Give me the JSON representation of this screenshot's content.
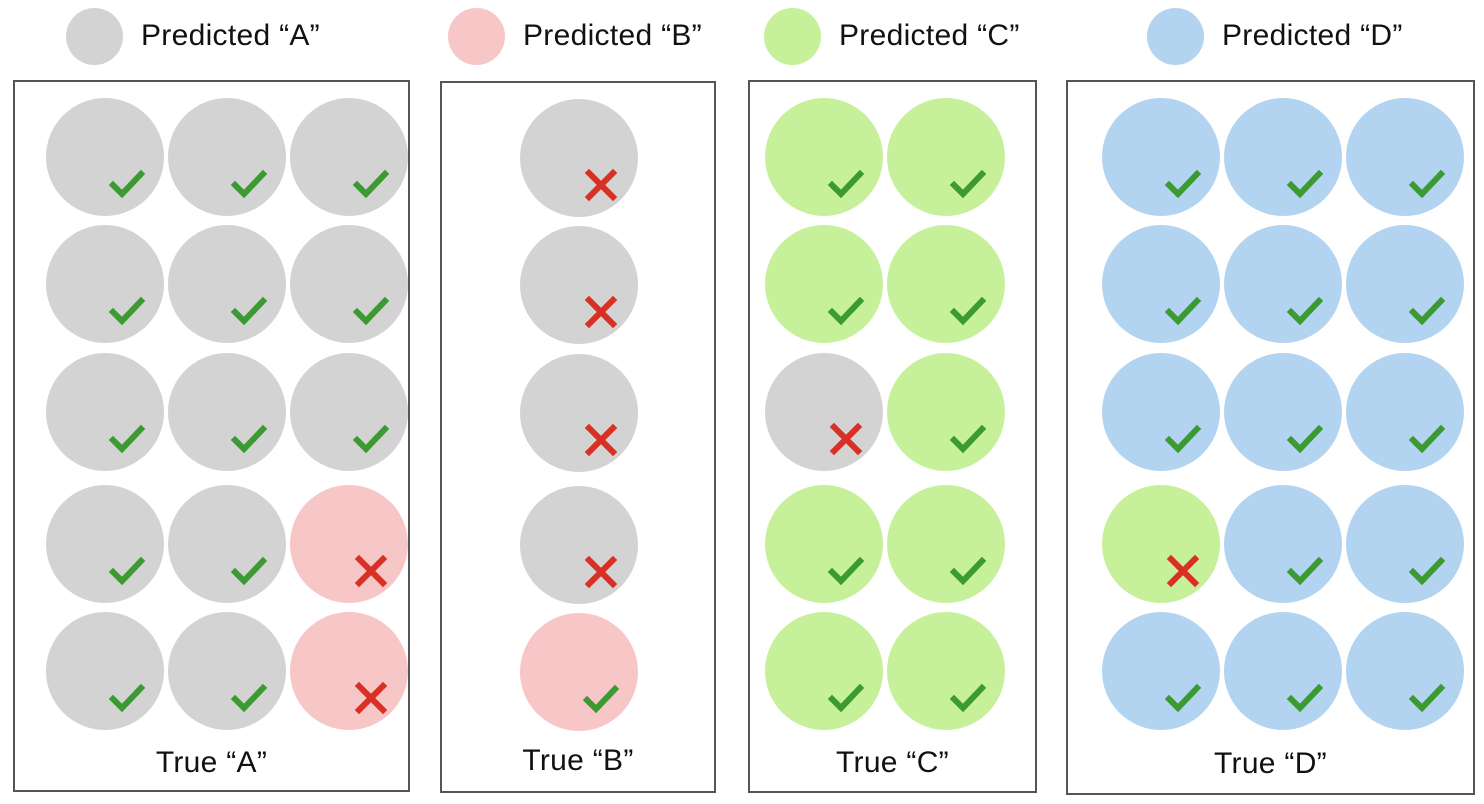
{
  "colors": {
    "A": "#d3d3d3",
    "B": "#f7c6c7",
    "C": "#c7f09a",
    "D": "#b3d4f1",
    "correct": "#3c9a32",
    "wrong": "#d93025"
  },
  "legend": [
    {
      "key": "A",
      "label": "Predicted “A”"
    },
    {
      "key": "B",
      "label": "Predicted “B”"
    },
    {
      "key": "C",
      "label": "Predicted “C”"
    },
    {
      "key": "D",
      "label": "Predicted “D”"
    }
  ],
  "panels": [
    {
      "true_class": "A",
      "label": "True “A”",
      "rows": [
        [
          {
            "pred": "A",
            "icon": "check-icon"
          },
          {
            "pred": "A",
            "icon": "check-icon"
          },
          {
            "pred": "A",
            "icon": "check-icon"
          }
        ],
        [
          {
            "pred": "A",
            "icon": "check-icon"
          },
          {
            "pred": "A",
            "icon": "check-icon"
          },
          {
            "pred": "A",
            "icon": "check-icon"
          }
        ],
        [
          {
            "pred": "A",
            "icon": "check-icon"
          },
          {
            "pred": "A",
            "icon": "check-icon"
          },
          {
            "pred": "A",
            "icon": "check-icon"
          }
        ],
        [
          {
            "pred": "A",
            "icon": "check-icon"
          },
          {
            "pred": "A",
            "icon": "check-icon"
          },
          {
            "pred": "B",
            "icon": "cross-icon"
          }
        ],
        [
          {
            "pred": "A",
            "icon": "check-icon"
          },
          {
            "pred": "A",
            "icon": "check-icon"
          },
          {
            "pred": "B",
            "icon": "cross-icon"
          }
        ]
      ]
    },
    {
      "true_class": "B",
      "label": "True “B”",
      "rows": [
        [
          {
            "pred": "A",
            "icon": "cross-icon"
          }
        ],
        [
          {
            "pred": "A",
            "icon": "cross-icon"
          }
        ],
        [
          {
            "pred": "A",
            "icon": "cross-icon"
          }
        ],
        [
          {
            "pred": "A",
            "icon": "cross-icon"
          }
        ],
        [
          {
            "pred": "B",
            "icon": "check-icon"
          }
        ]
      ]
    },
    {
      "true_class": "C",
      "label": "True “C”",
      "rows": [
        [
          {
            "pred": "C",
            "icon": "check-icon"
          },
          {
            "pred": "C",
            "icon": "check-icon"
          }
        ],
        [
          {
            "pred": "C",
            "icon": "check-icon"
          },
          {
            "pred": "C",
            "icon": "check-icon"
          }
        ],
        [
          {
            "pred": "A",
            "icon": "cross-icon"
          },
          {
            "pred": "C",
            "icon": "check-icon"
          }
        ],
        [
          {
            "pred": "C",
            "icon": "check-icon"
          },
          {
            "pred": "C",
            "icon": "check-icon"
          }
        ],
        [
          {
            "pred": "C",
            "icon": "check-icon"
          },
          {
            "pred": "C",
            "icon": "check-icon"
          }
        ]
      ]
    },
    {
      "true_class": "D",
      "label": "True “D”",
      "rows": [
        [
          {
            "pred": "D",
            "icon": "check-icon"
          },
          {
            "pred": "D",
            "icon": "check-icon"
          },
          {
            "pred": "D",
            "icon": "check-icon"
          }
        ],
        [
          {
            "pred": "D",
            "icon": "check-icon"
          },
          {
            "pred": "D",
            "icon": "check-icon"
          },
          {
            "pred": "D",
            "icon": "check-icon"
          }
        ],
        [
          {
            "pred": "D",
            "icon": "check-icon"
          },
          {
            "pred": "D",
            "icon": "check-icon"
          },
          {
            "pred": "D",
            "icon": "check-icon"
          }
        ],
        [
          {
            "pred": "C",
            "icon": "cross-icon"
          },
          {
            "pred": "D",
            "icon": "check-icon"
          },
          {
            "pred": "D",
            "icon": "check-icon"
          }
        ],
        [
          {
            "pred": "D",
            "icon": "check-icon"
          },
          {
            "pred": "D",
            "icon": "check-icon"
          },
          {
            "pred": "D",
            "icon": "check-icon"
          }
        ]
      ]
    }
  ]
}
